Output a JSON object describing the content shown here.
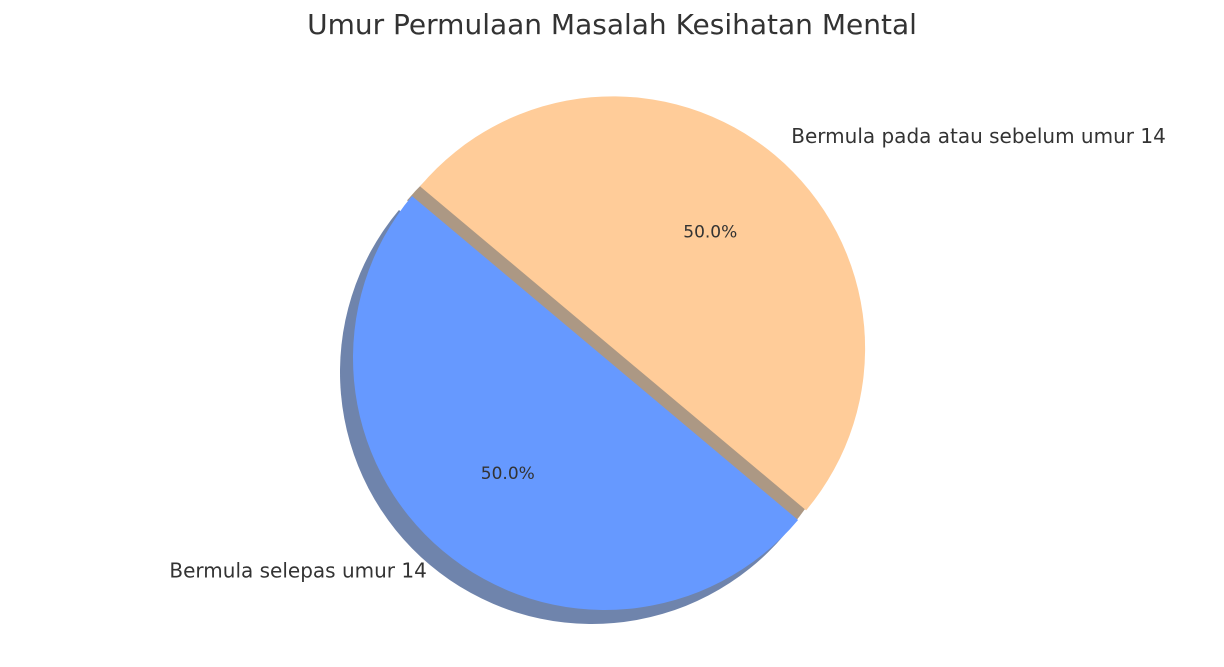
{
  "chart_data": {
    "type": "pie",
    "title": "Umur Permulaan Masalah Kesihatan Mental",
    "slices": [
      {
        "label": "Bermula selepas umur 14",
        "value": 50.0,
        "pct_label": "50.0%",
        "color": "#6699ff",
        "exploded": false
      },
      {
        "label": "Bermula pada atau sebelum umur 14",
        "value": 50.0,
        "pct_label": "50.0%",
        "color": "#ffcc99",
        "exploded": true
      }
    ],
    "start_angle_deg": 140,
    "shadow": true,
    "legend": "none"
  }
}
